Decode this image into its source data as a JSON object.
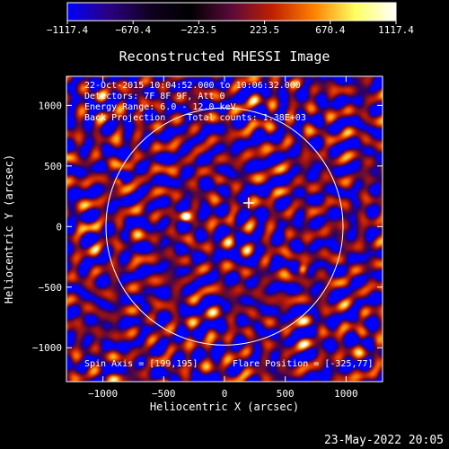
{
  "chart_data": {
    "type": "heatmap",
    "title": "Reconstructed RHESSI Image",
    "xlabel": "Heliocentric X (arcsec)",
    "ylabel": "Heliocentric Y (arcsec)",
    "xlim": [
      -1300,
      1300
    ],
    "ylim": [
      -1280,
      1240
    ],
    "x_ticks": [
      -1000,
      -500,
      0,
      500,
      1000
    ],
    "x_tick_labels": [
      "−1000",
      "−500",
      "0",
      "500",
      "1000"
    ],
    "y_ticks": [
      -1000,
      -500,
      0,
      500,
      1000
    ],
    "y_tick_labels": [
      "−1000",
      "−500",
      "0",
      "500",
      "1000"
    ],
    "colorbar": {
      "range": [
        -1117.4,
        1117.4
      ],
      "ticks": [
        -1117.4,
        -670.4,
        -223.5,
        223.5,
        670.4,
        1117.4
      ],
      "tick_labels": [
        "−1117.4",
        "−670.4",
        "−223.5",
        "223.5",
        "670.4",
        "1117.4"
      ],
      "colors": [
        "#0000ff",
        "#2a0080",
        "#100020",
        "#000000",
        "#5a0a3a",
        "#c02000",
        "#ff8000",
        "#ffff60",
        "#ffffff"
      ]
    },
    "solar_limb": {
      "center": [
        0,
        0
      ],
      "radius": 975,
      "color": "#ffffff"
    },
    "peaks": [
      {
        "x": -320,
        "y": 85,
        "value": 1117.4
      },
      {
        "x": -870,
        "y": 380,
        "value": 900
      },
      {
        "x": 640,
        "y": -355,
        "value": 800
      }
    ],
    "flare_marker": {
      "x": 199,
      "y": 195
    },
    "annotations": {
      "line1": "22-Oct-2015 10:04:52.000 to 10:06:32.000",
      "line2": "Detectors: 7F 8F 9F, Att 0",
      "line3": "Energy Range: 6.0 - 12.0 keV",
      "line4": "Back Projection    Total counts: 1.38E+03",
      "spin_axis": "Spin Axis = [199,195]",
      "flare_position": "Flare Position = [-325,77]"
    },
    "timestamp": "23-May-2022 20:05"
  }
}
